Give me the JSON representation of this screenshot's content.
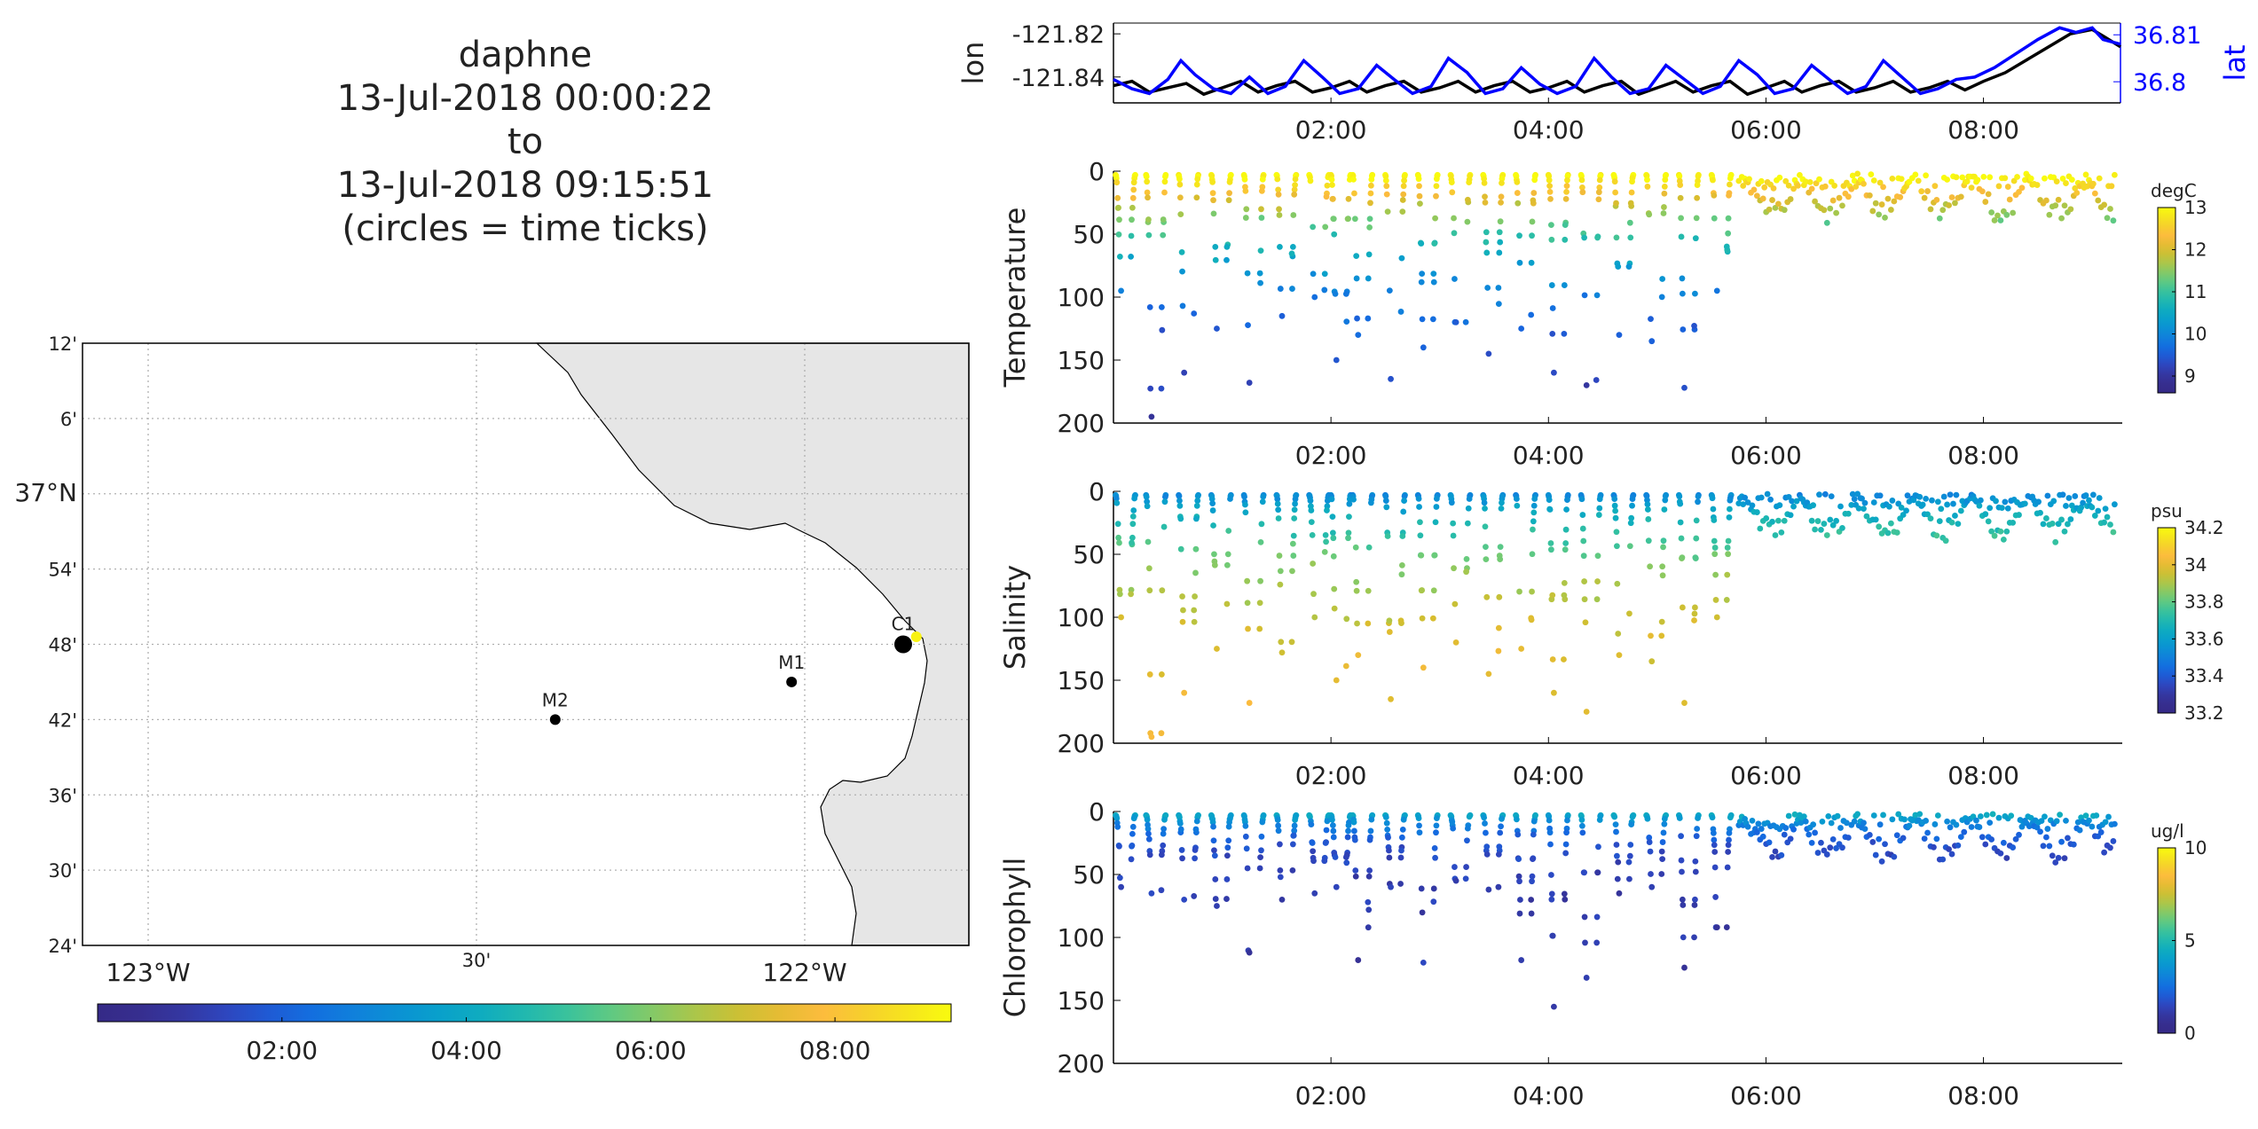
{
  "title": {
    "lines": [
      "daphne",
      "13-Jul-2018 00:00:22",
      "to",
      "13-Jul-2018 09:15:51",
      "(circles = time ticks)"
    ]
  },
  "colors": {
    "lon_line": "#000000",
    "lat_line": "#0000ff",
    "land": "#e6e6e6",
    "grid": "#b0b0b0"
  },
  "map": {
    "lat_ticks": [
      {
        "lat": 37.2,
        "label": "12'"
      },
      {
        "lat": 37.1,
        "label": "6'"
      },
      {
        "lat": 37.0,
        "label": "37°N"
      },
      {
        "lat": 36.9,
        "label": "54'"
      },
      {
        "lat": 36.8,
        "label": "48'"
      },
      {
        "lat": 36.7,
        "label": "42'"
      },
      {
        "lat": 36.6,
        "label": "36'"
      },
      {
        "lat": 36.5,
        "label": "30'"
      },
      {
        "lat": 36.4,
        "label": "24'"
      }
    ],
    "lon_ticks": [
      {
        "lon": -123.0,
        "label": "123°W"
      },
      {
        "lon": -122.5,
        "label": "30'"
      },
      {
        "lon": -122.0,
        "label": "122°W"
      }
    ],
    "lon_range": [
      -123.1,
      -121.75
    ],
    "lat_range": [
      36.4,
      37.2
    ],
    "stations": [
      {
        "name": "M2",
        "lon": -122.38,
        "lat": 36.7
      },
      {
        "name": "M1",
        "lon": -122.02,
        "lat": 36.75
      },
      {
        "name": "C1",
        "lon": -121.85,
        "lat": 36.8
      }
    ],
    "track_end_lon": -121.83,
    "track_end_lat": 36.81
  },
  "colorbar_time": {
    "ticks": [
      "02:00",
      "04:00",
      "06:00",
      "08:00"
    ]
  },
  "chart_data": [
    {
      "type": "line",
      "x_unit": "hours after 13-Jul-2018 00:00",
      "xlim": [
        0,
        9.26
      ],
      "x_ticks": [
        "02:00",
        "04:00",
        "06:00",
        "08:00"
      ],
      "ylabel_left": "lon",
      "ylabel_right": "lat",
      "ylim_left": [
        -121.852,
        -121.815
      ],
      "ylim_right": [
        36.7955,
        36.8125
      ],
      "left_ticks": [
        {
          "v": -121.82,
          "label": "-121.82"
        },
        {
          "v": -121.84,
          "label": "-121.84"
        }
      ],
      "right_ticks": [
        {
          "v": 36.81,
          "label": "36.81"
        },
        {
          "v": 36.8,
          "label": "36.8"
        }
      ],
      "series": [
        {
          "name": "lon",
          "axis": "left",
          "x": [
            0.0,
            0.17,
            0.33,
            0.5,
            0.67,
            0.83,
            1.0,
            1.17,
            1.33,
            1.5,
            1.67,
            1.83,
            2.0,
            2.17,
            2.33,
            2.5,
            2.67,
            2.83,
            3.0,
            3.17,
            3.33,
            3.5,
            3.67,
            3.83,
            4.0,
            4.17,
            4.33,
            4.5,
            4.67,
            4.83,
            5.0,
            5.17,
            5.33,
            5.5,
            5.67,
            5.83,
            6.0,
            6.17,
            6.33,
            6.5,
            6.67,
            6.83,
            7.0,
            7.17,
            7.33,
            7.5,
            7.67,
            7.83,
            8.0,
            8.2,
            8.4,
            8.6,
            8.8,
            9.0,
            9.1,
            9.26
          ],
          "y": [
            -121.844,
            -121.842,
            -121.847,
            -121.845,
            -121.843,
            -121.848,
            -121.845,
            -121.842,
            -121.847,
            -121.844,
            -121.842,
            -121.847,
            -121.845,
            -121.842,
            -121.847,
            -121.844,
            -121.842,
            -121.847,
            -121.845,
            -121.842,
            -121.847,
            -121.844,
            -121.842,
            -121.847,
            -121.845,
            -121.842,
            -121.847,
            -121.844,
            -121.842,
            -121.848,
            -121.845,
            -121.842,
            -121.847,
            -121.844,
            -121.842,
            -121.848,
            -121.845,
            -121.842,
            -121.847,
            -121.844,
            -121.842,
            -121.847,
            -121.845,
            -121.842,
            -121.847,
            -121.845,
            -121.842,
            -121.846,
            -121.842,
            -121.838,
            -121.832,
            -121.826,
            -121.82,
            -121.818,
            -121.821,
            -121.826
          ]
        },
        {
          "name": "lat",
          "axis": "right",
          "x": [
            0.0,
            0.17,
            0.33,
            0.5,
            0.62,
            0.75,
            0.92,
            1.08,
            1.25,
            1.42,
            1.58,
            1.75,
            1.92,
            2.08,
            2.25,
            2.42,
            2.58,
            2.75,
            2.92,
            3.08,
            3.25,
            3.42,
            3.58,
            3.75,
            3.92,
            4.08,
            4.25,
            4.42,
            4.58,
            4.75,
            4.92,
            5.08,
            5.25,
            5.42,
            5.58,
            5.75,
            5.92,
            6.08,
            6.25,
            6.42,
            6.58,
            6.75,
            6.92,
            7.08,
            7.25,
            7.42,
            7.58,
            7.75,
            7.92,
            8.1,
            8.3,
            8.5,
            8.7,
            8.85,
            9.0,
            9.1,
            9.26
          ],
          "y": [
            36.8005,
            36.7985,
            36.7975,
            36.8005,
            36.8045,
            36.8015,
            36.7985,
            36.7975,
            36.801,
            36.7975,
            36.799,
            36.8045,
            36.801,
            36.7975,
            36.7985,
            36.8035,
            36.8005,
            36.7975,
            36.799,
            36.805,
            36.802,
            36.7975,
            36.7985,
            36.803,
            36.7995,
            36.7975,
            36.799,
            36.805,
            36.801,
            36.7975,
            36.7985,
            36.8035,
            36.8005,
            36.7975,
            36.799,
            36.8045,
            36.8015,
            36.7975,
            36.7985,
            36.8035,
            36.8005,
            36.7975,
            36.799,
            36.8045,
            36.801,
            36.7975,
            36.7985,
            36.8005,
            36.801,
            36.803,
            36.806,
            36.809,
            36.8115,
            36.8105,
            36.8115,
            36.809,
            36.808
          ]
        }
      ]
    },
    {
      "type": "scatter",
      "ylabel": "Temperature",
      "units": "degC",
      "ylim": [
        200,
        0
      ],
      "y_ticks": [
        0,
        50,
        100,
        150,
        200
      ],
      "clim": [
        8.6,
        13
      ],
      "cbar_ticks": [
        9,
        10,
        11,
        12,
        13
      ],
      "x_ticks": [
        "02:00",
        "04:00",
        "06:00",
        "08:00"
      ],
      "profile_times": [
        0.02,
        0.3,
        0.6,
        0.9,
        1.2,
        1.5,
        1.8,
        2.0,
        2.2,
        2.5,
        2.8,
        3.1,
        3.4,
        3.7,
        4.0,
        4.3,
        4.6,
        4.9,
        5.2,
        5.5
      ],
      "max_depths": [
        95,
        195,
        160,
        125,
        168,
        115,
        100,
        150,
        130,
        165,
        140,
        120,
        145,
        125,
        160,
        170,
        130,
        135,
        172,
        95
      ],
      "dense_start": 5.75,
      "dense_end": 9.2,
      "dense_max_depth": 40,
      "color_model": {
        "surface": 13,
        "thermocline_depth": 25,
        "deep": 8.8,
        "scale_depth": 70
      }
    },
    {
      "type": "scatter",
      "ylabel": "Salinity",
      "units": "psu",
      "ylim": [
        200,
        0
      ],
      "y_ticks": [
        0,
        50,
        100,
        150,
        200
      ],
      "clim": [
        33.2,
        34.2
      ],
      "cbar_ticks": [
        33.2,
        33.4,
        33.6,
        33.8,
        34,
        34.2
      ],
      "x_ticks": [
        "02:00",
        "04:00",
        "06:00",
        "08:00"
      ],
      "profile_times": [
        0.02,
        0.3,
        0.6,
        0.9,
        1.2,
        1.5,
        1.8,
        2.0,
        2.2,
        2.5,
        2.8,
        3.1,
        3.4,
        3.7,
        4.0,
        4.3,
        4.6,
        4.9,
        5.2,
        5.5
      ],
      "max_depths": [
        100,
        195,
        160,
        125,
        168,
        128,
        100,
        150,
        130,
        165,
        140,
        120,
        145,
        125,
        160,
        175,
        130,
        135,
        168,
        100
      ],
      "dense_start": 5.75,
      "dense_end": 9.2,
      "dense_max_depth": 40,
      "color_model": {
        "surface": 33.5,
        "deep": 34.05,
        "scale_depth": 60
      }
    },
    {
      "type": "scatter",
      "ylabel": "Chlorophyll",
      "units": "ug/l",
      "ylim": [
        200,
        0
      ],
      "y_ticks": [
        0,
        50,
        100,
        150,
        200
      ],
      "clim": [
        0,
        10
      ],
      "cbar_ticks": [
        0,
        5,
        10
      ],
      "x_ticks": [
        "02:00",
        "04:00",
        "06:00",
        "08:00"
      ],
      "profile_times": [
        0.02,
        0.3,
        0.6,
        0.9,
        1.2,
        1.5,
        1.8,
        2.0,
        2.2,
        2.5,
        2.8,
        3.1,
        3.4,
        3.7,
        4.0,
        4.3,
        4.6,
        4.9,
        5.2,
        5.5
      ],
      "max_depths": [
        60,
        65,
        70,
        75,
        112,
        70,
        65,
        60,
        118,
        60,
        120,
        55,
        62,
        118,
        155,
        132,
        65,
        60,
        124,
        92
      ],
      "dense_start": 5.75,
      "dense_end": 9.2,
      "dense_max_depth": 40,
      "color_model": {
        "surface": 5,
        "deep": 1.2,
        "scale_depth": 15
      }
    }
  ]
}
